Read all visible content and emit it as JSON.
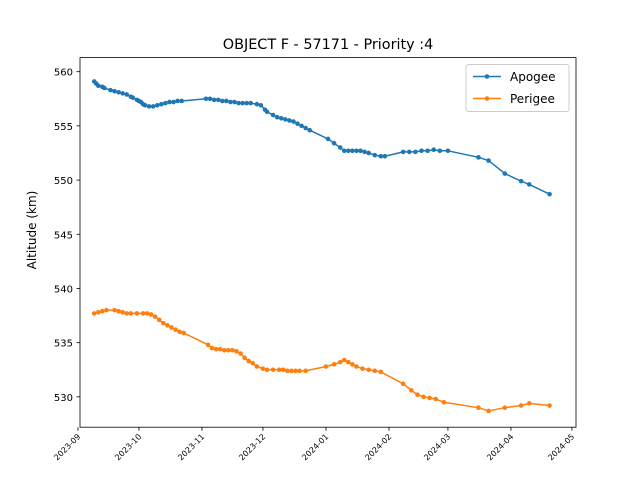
{
  "chart_data": {
    "type": "line",
    "title": "OBJECT F - 57171 - Priority :4",
    "xlabel": "",
    "ylabel": "Altitude (km)",
    "xlim": [
      "2023-09-02",
      "2024-05-03"
    ],
    "ylim": [
      527.2,
      561.3
    ],
    "x_ticks": [
      "2023-09",
      "2023-10",
      "2023-11",
      "2023-12",
      "2024-01",
      "2024-02",
      "2024-03",
      "2024-04",
      "2024-05"
    ],
    "y_ticks": [
      530,
      535,
      540,
      545,
      550,
      555,
      560
    ],
    "grid": false,
    "legend": "top-right",
    "series": [
      {
        "name": "Apogee",
        "color": "#1f77b4",
        "marker": "circle",
        "points": [
          [
            "2023-09-09",
            559.1
          ],
          [
            "2023-09-10",
            558.9
          ],
          [
            "2023-09-11",
            558.7
          ],
          [
            "2023-09-13",
            558.6
          ],
          [
            "2023-09-14",
            558.5
          ],
          [
            "2023-09-17",
            558.3
          ],
          [
            "2023-09-19",
            558.2
          ],
          [
            "2023-09-21",
            558.1
          ],
          [
            "2023-09-23",
            558.0
          ],
          [
            "2023-09-25",
            557.9
          ],
          [
            "2023-09-27",
            557.7
          ],
          [
            "2023-09-28",
            557.6
          ],
          [
            "2023-09-30",
            557.4
          ],
          [
            "2023-10-01",
            557.3
          ],
          [
            "2023-10-02",
            557.2
          ],
          [
            "2023-10-03",
            557.0
          ],
          [
            "2023-10-04",
            556.9
          ],
          [
            "2023-10-06",
            556.8
          ],
          [
            "2023-10-08",
            556.8
          ],
          [
            "2023-10-10",
            556.9
          ],
          [
            "2023-10-12",
            557.0
          ],
          [
            "2023-10-14",
            557.1
          ],
          [
            "2023-10-16",
            557.2
          ],
          [
            "2023-10-18",
            557.2
          ],
          [
            "2023-10-20",
            557.3
          ],
          [
            "2023-10-22",
            557.3
          ],
          [
            "2023-11-03",
            557.5
          ],
          [
            "2023-11-05",
            557.5
          ],
          [
            "2023-11-07",
            557.4
          ],
          [
            "2023-11-09",
            557.4
          ],
          [
            "2023-11-11",
            557.3
          ],
          [
            "2023-11-13",
            557.3
          ],
          [
            "2023-11-15",
            557.2
          ],
          [
            "2023-11-17",
            557.2
          ],
          [
            "2023-11-19",
            557.1
          ],
          [
            "2023-11-21",
            557.1
          ],
          [
            "2023-11-23",
            557.1
          ],
          [
            "2023-11-25",
            557.1
          ],
          [
            "2023-11-28",
            557.0
          ],
          [
            "2023-11-30",
            556.9
          ],
          [
            "2023-12-02",
            556.5
          ],
          [
            "2023-12-03",
            556.3
          ],
          [
            "2023-12-06",
            556.0
          ],
          [
            "2023-12-08",
            555.8
          ],
          [
            "2023-12-10",
            555.7
          ],
          [
            "2023-12-12",
            555.6
          ],
          [
            "2023-12-14",
            555.5
          ],
          [
            "2023-12-16",
            555.4
          ],
          [
            "2023-12-18",
            555.2
          ],
          [
            "2023-12-20",
            555.0
          ],
          [
            "2023-12-22",
            554.8
          ],
          [
            "2023-12-24",
            554.6
          ],
          [
            "2024-01-02",
            553.8
          ],
          [
            "2024-01-05",
            553.4
          ],
          [
            "2024-01-08",
            553.0
          ],
          [
            "2024-01-10",
            552.7
          ],
          [
            "2024-01-12",
            552.7
          ],
          [
            "2024-01-14",
            552.7
          ],
          [
            "2024-01-16",
            552.7
          ],
          [
            "2024-01-18",
            552.7
          ],
          [
            "2024-01-20",
            552.6
          ],
          [
            "2024-01-22",
            552.5
          ],
          [
            "2024-01-25",
            552.3
          ],
          [
            "2024-01-28",
            552.2
          ],
          [
            "2024-01-30",
            552.2
          ],
          [
            "2024-02-08",
            552.6
          ],
          [
            "2024-02-11",
            552.6
          ],
          [
            "2024-02-14",
            552.6
          ],
          [
            "2024-02-17",
            552.7
          ],
          [
            "2024-02-20",
            552.7
          ],
          [
            "2024-02-23",
            552.8
          ],
          [
            "2024-02-26",
            552.7
          ],
          [
            "2024-03-01",
            552.7
          ],
          [
            "2024-03-16",
            552.1
          ],
          [
            "2024-03-21",
            551.8
          ],
          [
            "2024-03-29",
            550.6
          ],
          [
            "2024-04-06",
            549.9
          ],
          [
            "2024-04-10",
            549.6
          ],
          [
            "2024-04-20",
            548.7
          ]
        ]
      },
      {
        "name": "Perigee",
        "color": "#ff7f0e",
        "marker": "circle",
        "points": [
          [
            "2023-09-09",
            537.7
          ],
          [
            "2023-09-11",
            537.8
          ],
          [
            "2023-09-13",
            537.9
          ],
          [
            "2023-09-15",
            538.0
          ],
          [
            "2023-09-19",
            538.0
          ],
          [
            "2023-09-21",
            537.9
          ],
          [
            "2023-09-23",
            537.8
          ],
          [
            "2023-09-25",
            537.7
          ],
          [
            "2023-09-27",
            537.7
          ],
          [
            "2023-09-30",
            537.7
          ],
          [
            "2023-10-03",
            537.7
          ],
          [
            "2023-10-05",
            537.7
          ],
          [
            "2023-10-07",
            537.6
          ],
          [
            "2023-10-09",
            537.4
          ],
          [
            "2023-10-11",
            537.1
          ],
          [
            "2023-10-13",
            536.8
          ],
          [
            "2023-10-15",
            536.6
          ],
          [
            "2023-10-17",
            536.4
          ],
          [
            "2023-10-19",
            536.2
          ],
          [
            "2023-10-21",
            536.0
          ],
          [
            "2023-10-23",
            535.9
          ],
          [
            "2023-11-04",
            534.8
          ],
          [
            "2023-11-06",
            534.5
          ],
          [
            "2023-11-08",
            534.4
          ],
          [
            "2023-11-10",
            534.4
          ],
          [
            "2023-11-12",
            534.3
          ],
          [
            "2023-11-14",
            534.3
          ],
          [
            "2023-11-16",
            534.3
          ],
          [
            "2023-11-18",
            534.2
          ],
          [
            "2023-11-20",
            534.0
          ],
          [
            "2023-11-22",
            533.6
          ],
          [
            "2023-11-24",
            533.3
          ],
          [
            "2023-11-26",
            533.1
          ],
          [
            "2023-11-28",
            532.8
          ],
          [
            "2023-12-01",
            532.6
          ],
          [
            "2023-12-03",
            532.5
          ],
          [
            "2023-12-06",
            532.5
          ],
          [
            "2023-12-09",
            532.5
          ],
          [
            "2023-12-11",
            532.5
          ],
          [
            "2023-12-13",
            532.4
          ],
          [
            "2023-12-15",
            532.4
          ],
          [
            "2023-12-17",
            532.4
          ],
          [
            "2023-12-19",
            532.4
          ],
          [
            "2023-12-22",
            532.4
          ],
          [
            "2024-01-01",
            532.8
          ],
          [
            "2024-01-05",
            533.0
          ],
          [
            "2024-01-08",
            533.2
          ],
          [
            "2024-01-10",
            533.4
          ],
          [
            "2024-01-12",
            533.2
          ],
          [
            "2024-01-14",
            533.0
          ],
          [
            "2024-01-16",
            532.8
          ],
          [
            "2024-01-19",
            532.6
          ],
          [
            "2024-01-22",
            532.5
          ],
          [
            "2024-01-25",
            532.4
          ],
          [
            "2024-01-28",
            532.3
          ],
          [
            "2024-02-08",
            531.2
          ],
          [
            "2024-02-12",
            530.6
          ],
          [
            "2024-02-15",
            530.2
          ],
          [
            "2024-02-18",
            530.0
          ],
          [
            "2024-02-21",
            529.9
          ],
          [
            "2024-02-24",
            529.8
          ],
          [
            "2024-02-28",
            529.5
          ],
          [
            "2024-03-16",
            529.0
          ],
          [
            "2024-03-21",
            528.7
          ],
          [
            "2024-03-29",
            529.0
          ],
          [
            "2024-04-06",
            529.2
          ],
          [
            "2024-04-10",
            529.4
          ],
          [
            "2024-04-20",
            529.2
          ]
        ]
      }
    ]
  }
}
